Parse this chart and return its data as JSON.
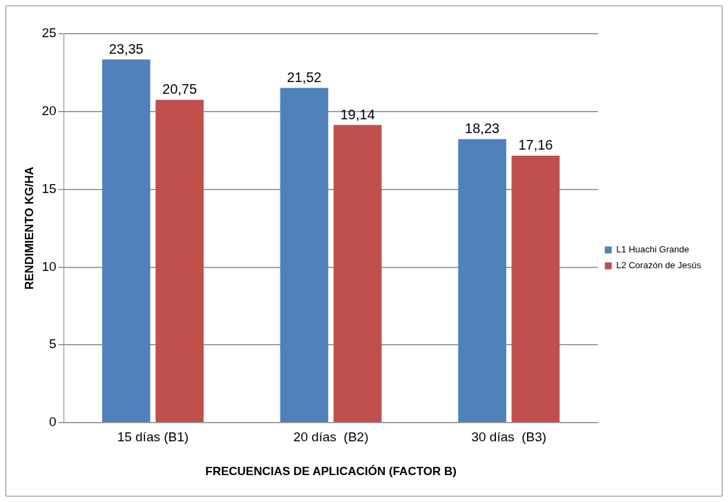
{
  "chart_data": {
    "type": "bar",
    "xlabel": "FRECUENCIAS DE APLICACIÓN (FACTOR B)",
    "ylabel": "RENDIMIENTO KG/HA",
    "categories": [
      "15 días (B1)",
      "20 días  (B2)",
      "30 días  (B3)"
    ],
    "series": [
      {
        "name": "L1 Huachi Grande",
        "color": "#4f81bd",
        "values": [
          23.35,
          21.52,
          18.23
        ],
        "value_labels": [
          "23,35",
          "21,52",
          "18,23"
        ]
      },
      {
        "name": "L2 Corazón de Jesús",
        "color": "#c0504d",
        "values": [
          20.75,
          19.14,
          17.16
        ],
        "value_labels": [
          "20,75",
          "19,14",
          "17,16"
        ]
      }
    ],
    "ylim": [
      0,
      25
    ],
    "yticks": [
      0,
      5,
      10,
      15,
      20,
      25
    ],
    "grid": "y",
    "legend": "right"
  }
}
